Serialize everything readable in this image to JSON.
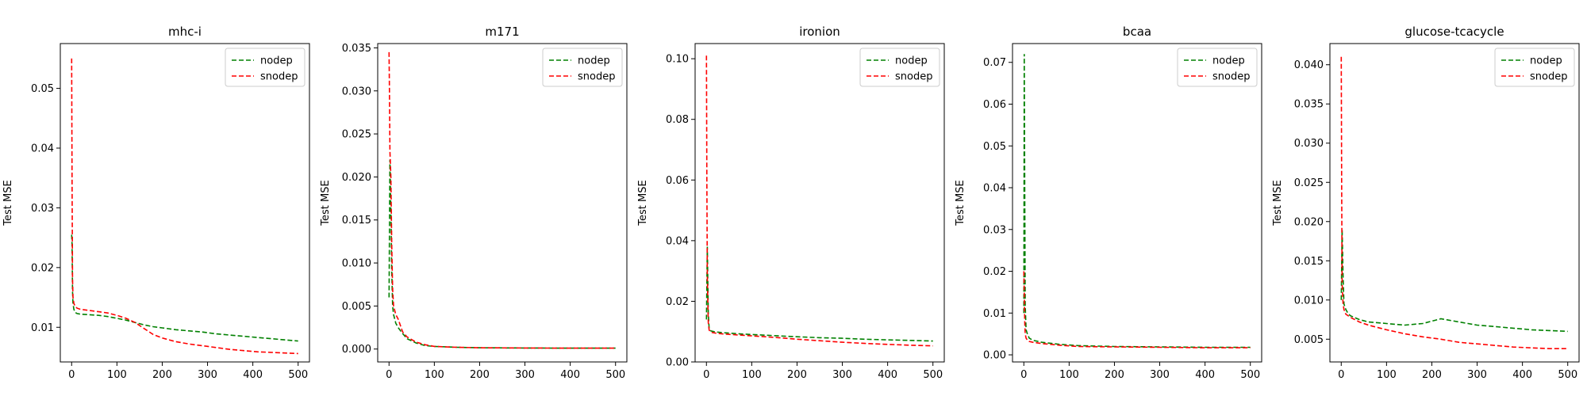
{
  "colors": {
    "nodep": "#008000",
    "snodep": "#ff0000"
  },
  "chart_data": [
    {
      "type": "line",
      "title": "mhc-i",
      "xlabel": "",
      "ylabel": "Test MSE",
      "xlim": [
        -25,
        525
      ],
      "ylim": [
        0.0042,
        0.0575
      ],
      "xticks": [
        0,
        100,
        200,
        300,
        400,
        500
      ],
      "xtick_labels": [
        "0",
        "100",
        "200",
        "300",
        "400",
        "500"
      ],
      "yticks": [
        0.01,
        0.02,
        0.03,
        0.04,
        0.05
      ],
      "ytick_labels": [
        "0.01",
        "0.02",
        "0.03",
        "0.04",
        "0.05"
      ],
      "legend_position": "top-right",
      "series": [
        {
          "name": "nodep",
          "x": [
            0,
            1,
            2,
            3,
            5,
            8,
            12,
            20,
            40,
            60,
            80,
            100,
            120,
            140,
            160,
            180,
            200,
            230,
            260,
            290,
            320,
            350,
            380,
            410,
            440,
            470,
            500
          ],
          "y": [
            0.0255,
            0.024,
            0.016,
            0.014,
            0.013,
            0.0125,
            0.0123,
            0.0122,
            0.0121,
            0.012,
            0.0118,
            0.0115,
            0.0112,
            0.0108,
            0.0104,
            0.0101,
            0.0099,
            0.0096,
            0.0094,
            0.0092,
            0.0089,
            0.0087,
            0.0085,
            0.0083,
            0.0081,
            0.0079,
            0.0077
          ]
        },
        {
          "name": "snodep",
          "x": [
            0,
            1,
            2,
            3,
            5,
            8,
            12,
            20,
            40,
            60,
            80,
            100,
            120,
            140,
            160,
            180,
            200,
            230,
            260,
            290,
            320,
            350,
            380,
            410,
            440,
            470,
            500
          ],
          "y": [
            0.055,
            0.035,
            0.018,
            0.015,
            0.014,
            0.0135,
            0.0132,
            0.013,
            0.0128,
            0.0126,
            0.0124,
            0.012,
            0.0115,
            0.0108,
            0.0098,
            0.0088,
            0.0082,
            0.0076,
            0.0072,
            0.0069,
            0.0066,
            0.0063,
            0.0061,
            0.0059,
            0.0058,
            0.0057,
            0.0056
          ]
        }
      ]
    },
    {
      "type": "line",
      "title": "m171",
      "xlabel": "",
      "ylabel": "Test MSE",
      "xlim": [
        -25,
        525
      ],
      "ylim": [
        -0.0015,
        0.0355
      ],
      "xticks": [
        0,
        100,
        200,
        300,
        400,
        500
      ],
      "xtick_labels": [
        "0",
        "100",
        "200",
        "300",
        "400",
        "500"
      ],
      "yticks": [
        0.0,
        0.005,
        0.01,
        0.015,
        0.02,
        0.025,
        0.03,
        0.035
      ],
      "ytick_labels": [
        "0.000",
        "0.005",
        "0.010",
        "0.015",
        "0.020",
        "0.025",
        "0.030",
        "0.035"
      ],
      "legend_position": "top-right",
      "series": [
        {
          "name": "nodep",
          "x": [
            0,
            2,
            4,
            6,
            8,
            10,
            15,
            20,
            30,
            40,
            60,
            80,
            100,
            150,
            200,
            300,
            400,
            500
          ],
          "y": [
            0.006,
            0.022,
            0.016,
            0.009,
            0.005,
            0.004,
            0.003,
            0.0025,
            0.0018,
            0.0012,
            0.0007,
            0.0004,
            0.0003,
            0.0002,
            0.00015,
            0.00012,
            0.0001,
            0.0001
          ]
        },
        {
          "name": "snodep",
          "x": [
            0,
            1,
            2,
            4,
            6,
            8,
            10,
            15,
            20,
            30,
            40,
            60,
            80,
            100,
            150,
            200,
            300,
            400,
            500
          ],
          "y": [
            0.0345,
            0.03,
            0.023,
            0.02,
            0.012,
            0.007,
            0.005,
            0.004,
            0.0035,
            0.002,
            0.0014,
            0.0008,
            0.0005,
            0.0003,
            0.0002,
            0.00015,
            0.00012,
            0.0001,
            0.0001
          ]
        }
      ]
    },
    {
      "type": "line",
      "title": "ironion",
      "xlabel": "",
      "ylabel": "Test MSE",
      "xlim": [
        -25,
        525
      ],
      "ylim": [
        0.0,
        0.105
      ],
      "xticks": [
        0,
        100,
        200,
        300,
        400,
        500
      ],
      "xtick_labels": [
        "0",
        "100",
        "200",
        "300",
        "400",
        "500"
      ],
      "yticks": [
        0.0,
        0.02,
        0.04,
        0.06,
        0.08,
        0.1
      ],
      "ytick_labels": [
        "0.00",
        "0.02",
        "0.04",
        "0.06",
        "0.08",
        "0.10"
      ],
      "legend_position": "top-right",
      "series": [
        {
          "name": "nodep",
          "x": [
            0,
            2,
            4,
            6,
            10,
            20,
            40,
            80,
            120,
            160,
            200,
            250,
            300,
            350,
            400,
            450,
            500
          ],
          "y": [
            0.014,
            0.038,
            0.016,
            0.011,
            0.0102,
            0.0099,
            0.0096,
            0.0092,
            0.0089,
            0.0086,
            0.0083,
            0.008,
            0.0078,
            0.0075,
            0.0073,
            0.0071,
            0.0069
          ]
        },
        {
          "name": "snodep",
          "x": [
            0,
            1,
            2,
            4,
            6,
            10,
            20,
            40,
            80,
            120,
            160,
            200,
            250,
            300,
            350,
            400,
            450,
            500
          ],
          "y": [
            0.101,
            0.06,
            0.028,
            0.013,
            0.0105,
            0.0098,
            0.0095,
            0.0092,
            0.0088,
            0.0084,
            0.008,
            0.0075,
            0.007,
            0.0065,
            0.0061,
            0.0058,
            0.0055,
            0.0053
          ]
        }
      ]
    },
    {
      "type": "line",
      "title": "bcaa",
      "xlabel": "",
      "ylabel": "Test MSE",
      "xlim": [
        -25,
        525
      ],
      "ylim": [
        -0.0017,
        0.0745
      ],
      "xticks": [
        0,
        100,
        200,
        300,
        400,
        500
      ],
      "xtick_labels": [
        "0",
        "100",
        "200",
        "300",
        "400",
        "500"
      ],
      "yticks": [
        0.0,
        0.01,
        0.02,
        0.03,
        0.04,
        0.05,
        0.06,
        0.07
      ],
      "ytick_labels": [
        "0.00",
        "0.01",
        "0.02",
        "0.03",
        "0.04",
        "0.05",
        "0.06",
        "0.07"
      ],
      "legend_position": "top-right",
      "series": [
        {
          "name": "nodep",
          "x": [
            0,
            1,
            2,
            3,
            5,
            8,
            12,
            20,
            40,
            80,
            120,
            200,
            300,
            400,
            500
          ],
          "y": [
            0.01,
            0.072,
            0.04,
            0.012,
            0.006,
            0.005,
            0.004,
            0.0035,
            0.003,
            0.0025,
            0.0022,
            0.002,
            0.0019,
            0.0018,
            0.0018
          ]
        },
        {
          "name": "snodep",
          "x": [
            0,
            1,
            2,
            3,
            5,
            8,
            12,
            20,
            40,
            80,
            120,
            200,
            300,
            400,
            500
          ],
          "y": [
            0.02,
            0.015,
            0.008,
            0.005,
            0.004,
            0.0035,
            0.0032,
            0.003,
            0.0027,
            0.0023,
            0.002,
            0.0019,
            0.0018,
            0.0017,
            0.0017
          ]
        }
      ]
    },
    {
      "type": "line",
      "title": "glucose-tcacycle",
      "xlabel": "",
      "ylabel": "Test MSE",
      "xlim": [
        -25,
        525
      ],
      "ylim": [
        0.0021,
        0.0427
      ],
      "xticks": [
        0,
        100,
        200,
        300,
        400,
        500
      ],
      "xtick_labels": [
        "0",
        "100",
        "200",
        "300",
        "400",
        "500"
      ],
      "yticks": [
        0.005,
        0.01,
        0.015,
        0.02,
        0.025,
        0.03,
        0.035,
        0.04
      ],
      "ytick_labels": [
        "0.005",
        "0.010",
        "0.015",
        "0.020",
        "0.025",
        "0.030",
        "0.035",
        "0.040"
      ],
      "legend_position": "top-right",
      "series": [
        {
          "name": "nodep",
          "x": [
            0,
            2,
            4,
            6,
            10,
            15,
            20,
            40,
            60,
            100,
            140,
            180,
            220,
            260,
            300,
            340,
            380,
            420,
            460,
            500
          ],
          "y": [
            0.01,
            0.019,
            0.013,
            0.0095,
            0.0088,
            0.0083,
            0.008,
            0.0075,
            0.0072,
            0.007,
            0.0068,
            0.007,
            0.0076,
            0.0072,
            0.0068,
            0.0066,
            0.0064,
            0.0062,
            0.0061,
            0.006
          ]
        },
        {
          "name": "snodep",
          "x": [
            0,
            1,
            2,
            4,
            6,
            10,
            20,
            40,
            60,
            100,
            140,
            180,
            220,
            260,
            300,
            340,
            380,
            420,
            460,
            500
          ],
          "y": [
            0.041,
            0.025,
            0.012,
            0.0095,
            0.0088,
            0.0082,
            0.0078,
            0.0072,
            0.0068,
            0.0062,
            0.0057,
            0.0053,
            0.005,
            0.0046,
            0.0044,
            0.0042,
            0.004,
            0.0039,
            0.0038,
            0.0038
          ]
        }
      ]
    }
  ]
}
